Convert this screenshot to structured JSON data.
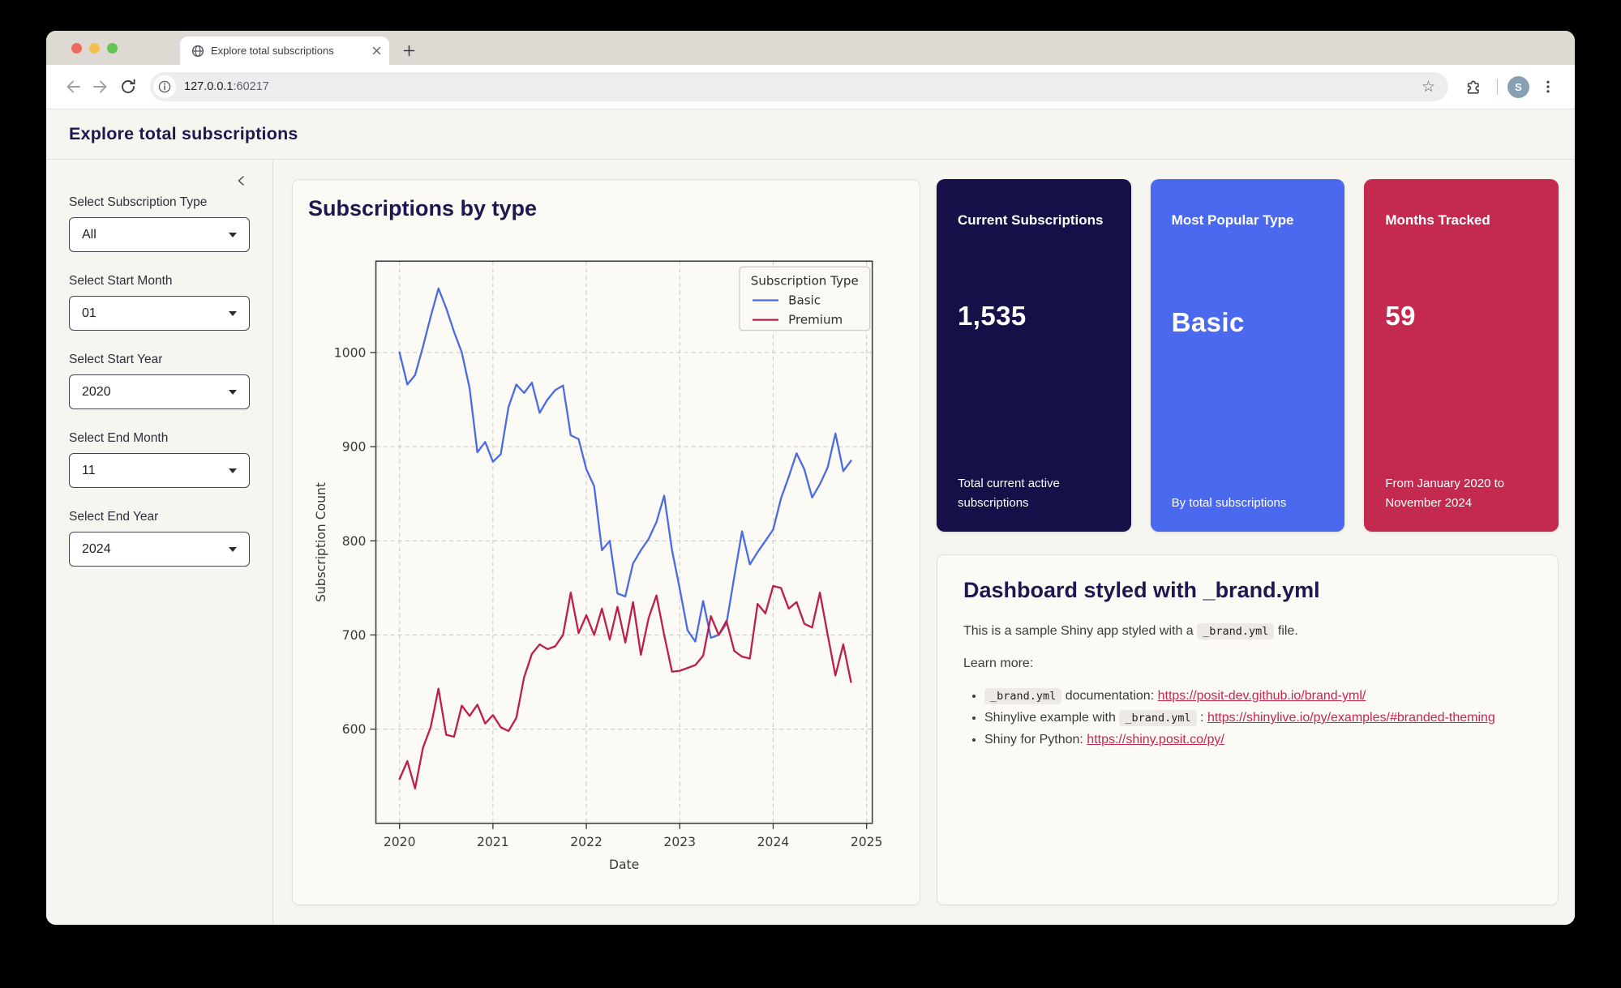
{
  "browser": {
    "tab_title": "Explore total subscriptions",
    "url_host": "127.0.0.1",
    "url_port": ":60217",
    "avatar_initial": "S"
  },
  "header": {
    "title": "Explore total subscriptions"
  },
  "sidebar": {
    "controls": [
      {
        "label": "Select Subscription Type",
        "value": "All"
      },
      {
        "label": "Select Start Month",
        "value": "01"
      },
      {
        "label": "Select Start Year",
        "value": "2020"
      },
      {
        "label": "Select End Month",
        "value": "11"
      },
      {
        "label": "Select End Year",
        "value": "2024"
      }
    ]
  },
  "chart_card": {
    "title": "Subscriptions by type"
  },
  "chart_data": {
    "type": "line",
    "title": "Subscriptions by type",
    "xlabel": "Date",
    "ylabel": "Subscription Count",
    "x_frequency": "monthly",
    "x_start": "2020-01",
    "x_end": "2024-11",
    "xticks": [
      2020,
      2021,
      2022,
      2023,
      2024,
      2025
    ],
    "yticks": [
      600,
      700,
      800,
      900,
      1000
    ],
    "xlim_months": [
      -3.04,
      60.73
    ],
    "ylim": [
      500,
      1097
    ],
    "grid": true,
    "legend_title": "Subscription Type",
    "legend_position": "upper right",
    "series": [
      {
        "name": "Basic",
        "color": "#4A6BE3",
        "values": [
          1000,
          966,
          976,
          1006,
          1038,
          1068,
          1047,
          1022,
          1000,
          962,
          894,
          905,
          884,
          892,
          942,
          966,
          957,
          968,
          936,
          950,
          960,
          965,
          912,
          908,
          876,
          858,
          790,
          800,
          744,
          741,
          776,
          790,
          802,
          820,
          848,
          790,
          749,
          705,
          693,
          736,
          697,
          700,
          712,
          762,
          810,
          775,
          788,
          800,
          812,
          845,
          868,
          893,
          876,
          846,
          860,
          878,
          914,
          874,
          885
        ]
      },
      {
        "name": "Premium",
        "color": "#BE1E4C",
        "values": [
          547,
          566,
          537,
          580,
          602,
          643,
          594,
          592,
          625,
          614,
          626,
          606,
          615,
          602,
          598,
          612,
          655,
          680,
          690,
          685,
          688,
          700,
          745,
          702,
          721,
          700,
          728,
          695,
          730,
          692,
          735,
          679,
          718,
          742,
          700,
          661,
          662,
          665,
          668,
          678,
          720,
          700,
          715,
          683,
          677,
          675,
          733,
          723,
          752,
          750,
          728,
          735,
          712,
          708,
          745,
          700,
          657,
          690,
          650
        ]
      }
    ]
  },
  "value_boxes": [
    {
      "title": "Current Subscriptions",
      "value": "1,535",
      "caption": "Total current active subscriptions",
      "bg": "#151048"
    },
    {
      "title": "Most Popular Type",
      "value": "Basic",
      "caption": "By total subscriptions",
      "bg": "#4A69EE"
    },
    {
      "title": "Months Tracked",
      "value": "59",
      "caption": "From January 2020 to November 2024",
      "bg": "#C42950"
    }
  ],
  "info_card": {
    "title": "Dashboard styled with _brand.yml",
    "intro_prefix": "This is a sample Shiny app styled with a",
    "intro_code": "_brand.yml",
    "intro_suffix": "file.",
    "learn_more": "Learn more:",
    "bullets": [
      {
        "code": "_brand.yml",
        "text_after": "documentation:",
        "link_text": "https://posit-dev.github.io/brand-yml/",
        "href": "https://posit-dev.github.io/brand-yml/"
      },
      {
        "text_before": "Shinylive example with",
        "code": "_brand.yml",
        "sep": ":",
        "link_text": "https://shinylive.io/py/examples/#branded-theming",
        "href": "https://shinylive.io/py/examples/#branded-theming"
      },
      {
        "text_before": "Shiny for Python:",
        "link_text": "https://shiny.posit.co/py/",
        "href": "https://shiny.posit.co/py/"
      }
    ]
  }
}
